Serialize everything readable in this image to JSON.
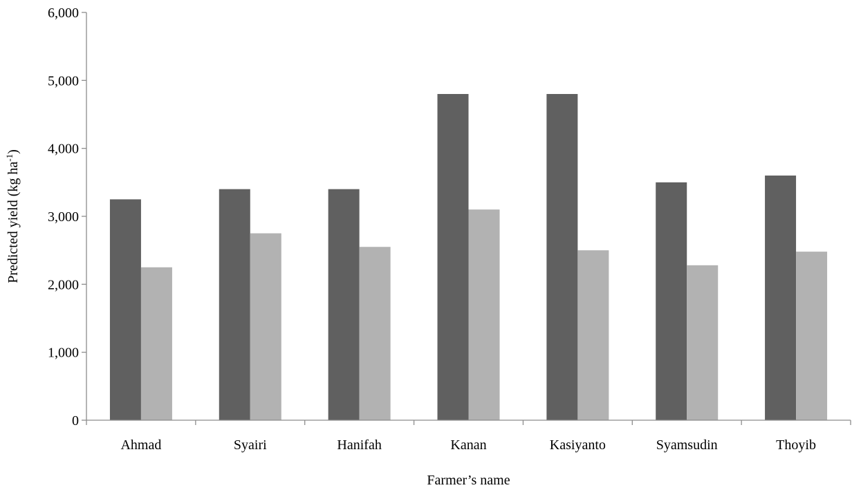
{
  "chart_data": {
    "type": "bar",
    "title": "",
    "xlabel": "Farmer’s name",
    "ylabel": "Predicted yield (kg ha",
    "ylabel_superscript": "-1",
    "ylabel_suffix": ")",
    "ylim": [
      0,
      6000
    ],
    "yticks": [
      0,
      1000,
      2000,
      3000,
      4000,
      5000,
      6000
    ],
    "ytick_labels": [
      "0",
      "1,000",
      "2,000",
      "3,000",
      "4,000",
      "5,000",
      "6,000"
    ],
    "grid": false,
    "categories": [
      "Ahmad",
      "Syairi",
      "Hanifah",
      "Kanan",
      "Kasiyanto",
      "Syamsudin",
      "Thoyib"
    ],
    "series": [
      {
        "color": "#606060",
        "values": [
          3250,
          3400,
          3400,
          4800,
          4800,
          3500,
          3600
        ]
      },
      {
        "color": "#b2b2b2",
        "values": [
          2250,
          2750,
          2550,
          3100,
          2500,
          2280,
          2480
        ]
      }
    ]
  }
}
